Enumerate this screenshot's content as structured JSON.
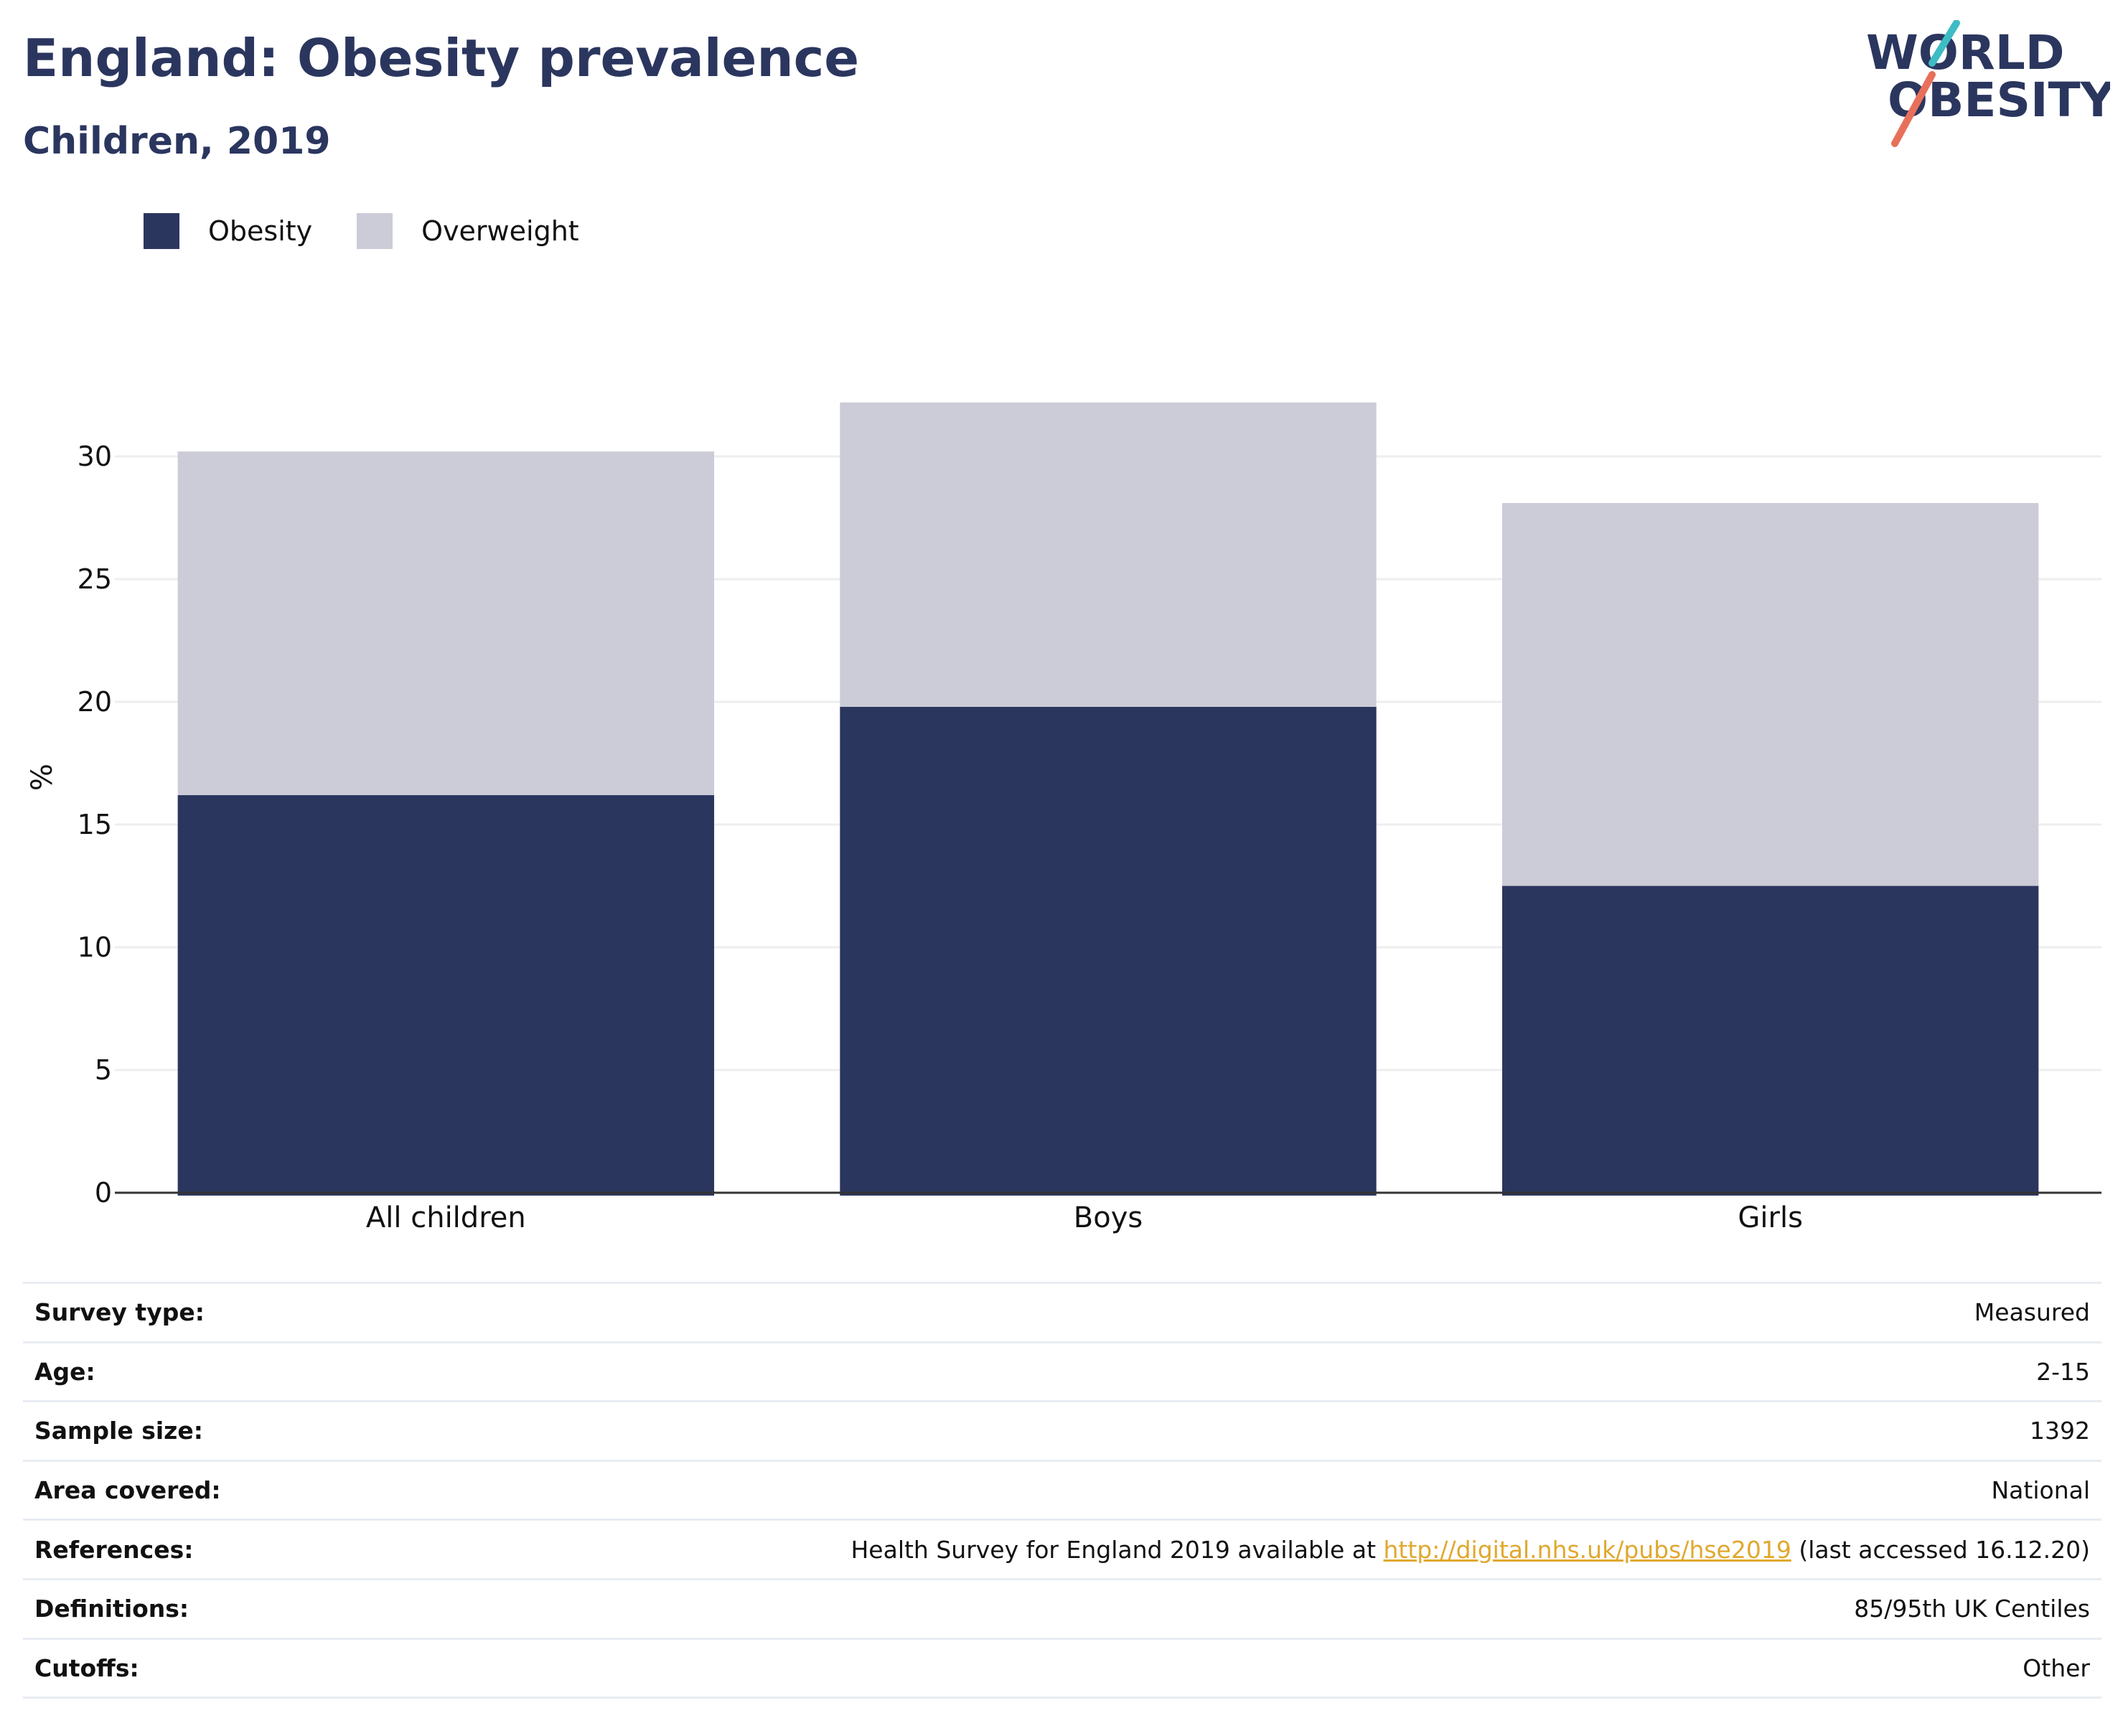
{
  "header": {
    "title": "England: Obesity prevalence",
    "subtitle": "Children, 2019"
  },
  "logo": {
    "line1": "WORLD",
    "line2": "OBESITY",
    "colors": {
      "text": "#2b365f",
      "slash_top": "#3dbcc4",
      "slash_bottom": "#e8705a"
    }
  },
  "legend": {
    "items": [
      {
        "label": "Obesity",
        "color": "#2b365f"
      },
      {
        "label": "Overweight",
        "color": "#cbccd7"
      }
    ]
  },
  "chart_data": {
    "type": "bar",
    "stacked": true,
    "categories": [
      "All children",
      "Boys",
      "Girls"
    ],
    "series": [
      {
        "name": "Obesity",
        "values": [
          16.2,
          19.8,
          12.5
        ],
        "color": "#2b365f"
      },
      {
        "name": "Overweight",
        "values": [
          14.0,
          12.4,
          15.6
        ],
        "color": "#cbccd7"
      }
    ],
    "ylabel": "%",
    "xlabel": "",
    "ylim": [
      0,
      32.2
    ],
    "yticks": [
      0,
      5,
      10,
      15,
      20,
      25,
      30
    ],
    "grid": true,
    "legend_position": "top-left"
  },
  "info": {
    "rows": [
      {
        "key": "Survey type:",
        "value": "Measured"
      },
      {
        "key": "Age:",
        "value": "2-15"
      },
      {
        "key": "Sample size:",
        "value": "1392"
      },
      {
        "key": "Area covered:",
        "value": "National"
      },
      {
        "key": "References:",
        "value_prefix": "Health Survey for England 2019 available at ",
        "value_link": "http://digital.nhs.uk/pubs/hse2019",
        "value_suffix": " (last accessed 16.12.20)"
      },
      {
        "key": "Definitions:",
        "value": "85/95th UK Centiles"
      },
      {
        "key": "Cutoffs:",
        "value": "Other"
      }
    ]
  }
}
